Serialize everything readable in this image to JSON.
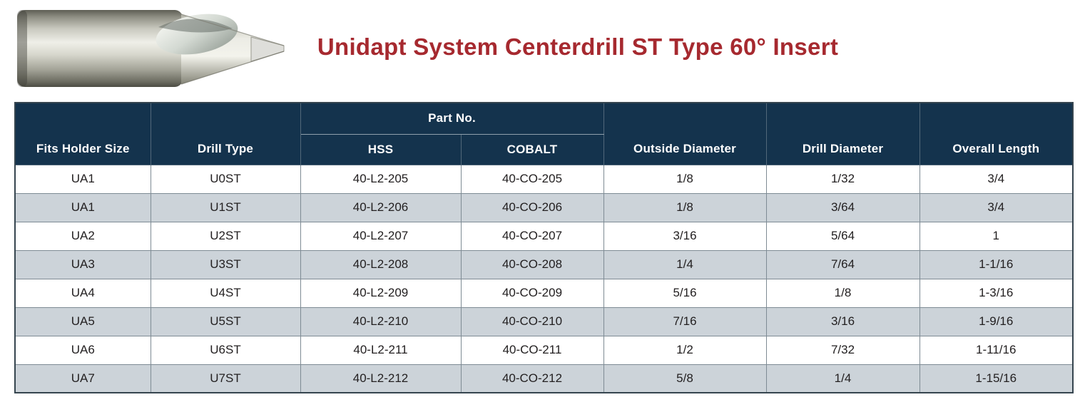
{
  "page": {
    "title": "Unidapt System Centerdrill ST Type 60° Insert"
  },
  "product_image": {
    "icon": "centerdrill-photo"
  },
  "colors": {
    "title": "#a6292f",
    "header_bg": "#14334d",
    "row_alt_bg": "#ccd3d9",
    "grid_border": "#7e8b94",
    "outer_border": "#36454f",
    "cell_text": "#232021"
  },
  "table": {
    "header": {
      "fits_holder_size": "Fits Holder Size",
      "drill_type": "Drill Type",
      "part_no": "Part No.",
      "hss": "HSS",
      "cobalt": "COBALT",
      "outside_diameter": "Outside Diameter",
      "drill_diameter": "Drill Diameter",
      "overall_length": "Overall Length"
    },
    "rows": [
      [
        "UA1",
        "U0ST",
        "40-L2-205",
        "40-CO-205",
        "1/8",
        "1/32",
        "3/4"
      ],
      [
        "UA1",
        "U1ST",
        "40-L2-206",
        "40-CO-206",
        "1/8",
        "3/64",
        "3/4"
      ],
      [
        "UA2",
        "U2ST",
        "40-L2-207",
        "40-CO-207",
        "3/16",
        "5/64",
        "1"
      ],
      [
        "UA3",
        "U3ST",
        "40-L2-208",
        "40-CO-208",
        "1/4",
        "7/64",
        "1-1/16"
      ],
      [
        "UA4",
        "U4ST",
        "40-L2-209",
        "40-CO-209",
        "5/16",
        "1/8",
        "1-3/16"
      ],
      [
        "UA5",
        "U5ST",
        "40-L2-210",
        "40-CO-210",
        "7/16",
        "3/16",
        "1-9/16"
      ],
      [
        "UA6",
        "U6ST",
        "40-L2-211",
        "40-CO-211",
        "1/2",
        "7/32",
        "1-11/16"
      ],
      [
        "UA7",
        "U7ST",
        "40-L2-212",
        "40-CO-212",
        "5/8",
        "1/4",
        "1-15/16"
      ]
    ]
  }
}
